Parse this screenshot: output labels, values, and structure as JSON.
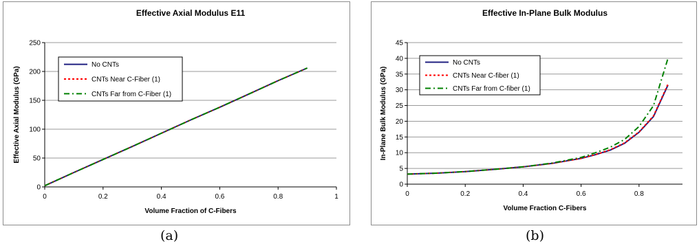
{
  "captions": [
    "(a)",
    "(b)"
  ],
  "chart_data": [
    {
      "type": "line",
      "title": "Effective Axial Modulus E11",
      "xlabel": "Volume Fraction of C-Fibers",
      "ylabel": "Effective Axial Modulus (GPa)",
      "xlim": [
        0,
        1
      ],
      "ylim": [
        0,
        250
      ],
      "xticks": [
        "0",
        "0.2",
        "0.4",
        "0.6",
        "0.8",
        "1"
      ],
      "yticks": [
        "0",
        "50",
        "100",
        "150",
        "200",
        "250"
      ],
      "xtick_values": [
        0,
        0.2,
        0.4,
        0.6,
        0.8,
        1
      ],
      "ytick_values": [
        0,
        50,
        100,
        150,
        200,
        250
      ],
      "grid": "horizontal",
      "legend_position": "top-left",
      "series": [
        {
          "name": "No CNTs",
          "color": "#1f1f80",
          "style": "solid",
          "x": [
            0,
            0.1,
            0.2,
            0.3,
            0.4,
            0.5,
            0.6,
            0.7,
            0.8,
            0.9
          ],
          "y": [
            2,
            25,
            47.5,
            70,
            93,
            116,
            138,
            161,
            184,
            206
          ]
        },
        {
          "name": "CNTs Near C-Fiber (1)",
          "color": "#ff0000",
          "style": "dotted",
          "x": [
            0,
            0.1,
            0.2,
            0.3,
            0.4,
            0.5,
            0.6,
            0.7,
            0.8,
            0.9
          ],
          "y": [
            2,
            25,
            47.5,
            70,
            93,
            116,
            138,
            161,
            184,
            206
          ]
        },
        {
          "name": "CNTs Far from C-Fiber (1)",
          "color": "#008000",
          "style": "dashdot",
          "x": [
            0,
            0.1,
            0.2,
            0.3,
            0.4,
            0.5,
            0.6,
            0.7,
            0.8,
            0.9
          ],
          "y": [
            2,
            25,
            47.5,
            70,
            93,
            116,
            138,
            161,
            184,
            206
          ]
        }
      ]
    },
    {
      "type": "line",
      "title": "Effective In-Plane Bulk Modulus",
      "xlabel": "Volume Fraction C-Fibers",
      "ylabel": "In-Plane Bulk Modulus (GPa)",
      "xlim": [
        0,
        0.95
      ],
      "ylim": [
        0,
        45
      ],
      "xticks": [
        "0",
        "0.2",
        "0.4",
        "0.6",
        "0.8"
      ],
      "yticks": [
        "0",
        "5",
        "10",
        "15",
        "20",
        "25",
        "30",
        "35",
        "40",
        "45"
      ],
      "xtick_values": [
        0,
        0.2,
        0.4,
        0.6,
        0.8
      ],
      "ytick_values": [
        0,
        5,
        10,
        15,
        20,
        25,
        30,
        35,
        40,
        45
      ],
      "grid": "horizontal",
      "legend_position": "top-left",
      "series": [
        {
          "name": "No CNTs",
          "color": "#1f1f80",
          "style": "solid",
          "x": [
            0,
            0.1,
            0.2,
            0.3,
            0.4,
            0.5,
            0.6,
            0.65,
            0.7,
            0.75,
            0.8,
            0.85,
            0.9
          ],
          "y": [
            3.2,
            3.5,
            4.0,
            4.7,
            5.5,
            6.6,
            8.2,
            9.4,
            10.8,
            13.0,
            16.5,
            21.5,
            31.5
          ]
        },
        {
          "name": "CNTs Near C-fiber (1)",
          "color": "#ff0000",
          "style": "dotted",
          "x": [
            0,
            0.1,
            0.2,
            0.3,
            0.4,
            0.5,
            0.6,
            0.65,
            0.7,
            0.75,
            0.8,
            0.85,
            0.9
          ],
          "y": [
            3.2,
            3.5,
            4.0,
            4.7,
            5.5,
            6.6,
            8.2,
            9.4,
            10.9,
            13.1,
            16.6,
            21.7,
            31.8
          ]
        },
        {
          "name": "CNTs Far from C-fiber (1)",
          "color": "#008000",
          "style": "dashdot",
          "x": [
            0,
            0.1,
            0.2,
            0.3,
            0.4,
            0.5,
            0.6,
            0.65,
            0.7,
            0.75,
            0.8,
            0.85,
            0.9
          ],
          "y": [
            3.2,
            3.5,
            4.0,
            4.7,
            5.5,
            6.7,
            8.5,
            10.0,
            11.7,
            14.2,
            18.3,
            25.0,
            40.0
          ]
        }
      ]
    }
  ]
}
